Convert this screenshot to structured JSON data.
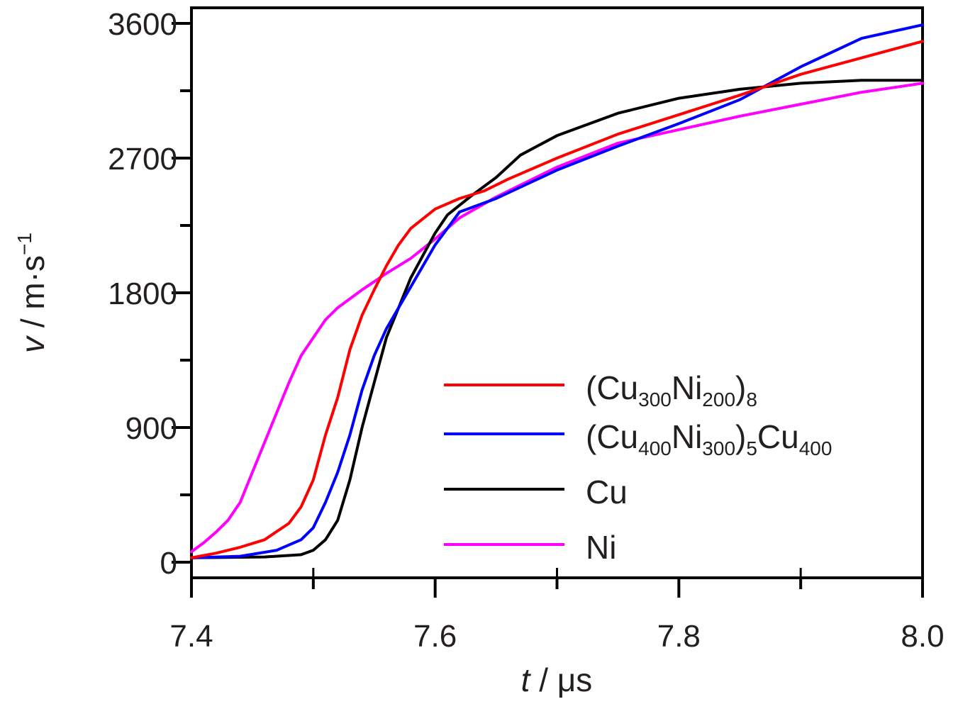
{
  "chart_data": {
    "type": "line",
    "xlabel": "t / μs",
    "xlabel_var": "t",
    "xlabel_unit": " / μs",
    "ylabel": "v / m·s−1",
    "ylabel_var": "v",
    "ylabel_unit": " / m·s",
    "ylabel_sup": "−1",
    "xlim": [
      7.4,
      8.0
    ],
    "ylim": [
      -100,
      3700
    ],
    "xticks": [
      "7.4",
      "7.6",
      "7.8",
      "8.0"
    ],
    "yticks": [
      "0",
      "900",
      "1800",
      "2700",
      "3600"
    ],
    "grid": false,
    "legend_position": "lower-right",
    "series": [
      {
        "name": "(Cu300Ni200)8",
        "legend": [
          [
            "(Cu",
            ""
          ],
          [
            "300",
            "sub"
          ],
          [
            "Ni",
            ""
          ],
          [
            "200",
            "sub"
          ],
          [
            ")",
            ""
          ],
          [
            "8",
            "sub"
          ]
        ],
        "color": "#ff0000",
        "x": [
          7.4,
          7.42,
          7.44,
          7.46,
          7.48,
          7.49,
          7.5,
          7.51,
          7.52,
          7.53,
          7.54,
          7.55,
          7.56,
          7.57,
          7.58,
          7.6,
          7.62,
          7.64,
          7.66,
          7.7,
          7.75,
          7.8,
          7.85,
          7.9,
          7.95,
          8.0
        ],
        "y": [
          30,
          60,
          100,
          150,
          260,
          370,
          550,
          850,
          1100,
          1420,
          1650,
          1820,
          1980,
          2120,
          2230,
          2360,
          2430,
          2480,
          2560,
          2700,
          2860,
          2990,
          3120,
          3260,
          3370,
          3480
        ]
      },
      {
        "name": "(Cu400Ni300)5Cu400",
        "legend": [
          [
            "(Cu",
            ""
          ],
          [
            "400",
            "sub"
          ],
          [
            "Ni",
            ""
          ],
          [
            "300",
            "sub"
          ],
          [
            ")",
            ""
          ],
          [
            "5",
            "sub"
          ],
          [
            "Cu",
            ""
          ],
          [
            "400",
            "sub"
          ]
        ],
        "color": "#0000ff",
        "x": [
          7.4,
          7.44,
          7.47,
          7.49,
          7.5,
          7.51,
          7.52,
          7.53,
          7.54,
          7.55,
          7.56,
          7.57,
          7.58,
          7.59,
          7.6,
          7.62,
          7.65,
          7.7,
          7.75,
          7.8,
          7.85,
          7.9,
          7.95,
          8.0
        ],
        "y": [
          30,
          40,
          80,
          150,
          230,
          400,
          600,
          850,
          1150,
          1380,
          1560,
          1700,
          1840,
          1980,
          2120,
          2340,
          2430,
          2620,
          2780,
          2930,
          3090,
          3310,
          3500,
          3590
        ]
      },
      {
        "name": "Cu",
        "legend": [
          [
            "Cu",
            ""
          ]
        ],
        "color": "#000000",
        "x": [
          7.4,
          7.46,
          7.49,
          7.5,
          7.51,
          7.52,
          7.53,
          7.54,
          7.55,
          7.56,
          7.57,
          7.58,
          7.59,
          7.6,
          7.61,
          7.63,
          7.65,
          7.67,
          7.7,
          7.75,
          7.8,
          7.85,
          7.9,
          7.95,
          8.0
        ],
        "y": [
          30,
          35,
          50,
          80,
          150,
          280,
          550,
          900,
          1200,
          1500,
          1700,
          1900,
          2050,
          2200,
          2320,
          2450,
          2570,
          2720,
          2850,
          3000,
          3100,
          3160,
          3200,
          3220,
          3220
        ]
      },
      {
        "name": "Ni",
        "legend": [
          [
            "Ni",
            ""
          ]
        ],
        "color": "#ff00ff",
        "x": [
          7.4,
          7.41,
          7.42,
          7.43,
          7.44,
          7.45,
          7.46,
          7.47,
          7.48,
          7.49,
          7.5,
          7.51,
          7.52,
          7.54,
          7.56,
          7.58,
          7.6,
          7.62,
          7.65,
          7.7,
          7.75,
          7.8,
          7.85,
          7.9,
          7.95,
          8.0
        ],
        "y": [
          70,
          130,
          200,
          280,
          400,
          600,
          800,
          1000,
          1200,
          1380,
          1500,
          1620,
          1700,
          1820,
          1930,
          2030,
          2160,
          2300,
          2440,
          2640,
          2800,
          2890,
          2980,
          3060,
          3140,
          3200
        ]
      }
    ]
  }
}
